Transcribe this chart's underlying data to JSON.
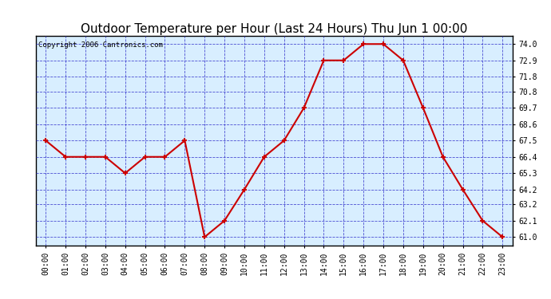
{
  "title": "Outdoor Temperature per Hour (Last 24 Hours) Thu Jun 1 00:00",
  "copyright_text": "Copyright 2006 Cantronics.com",
  "hours": [
    "00:00",
    "01:00",
    "02:00",
    "03:00",
    "04:00",
    "05:00",
    "06:00",
    "07:00",
    "08:00",
    "09:00",
    "10:00",
    "11:00",
    "12:00",
    "13:00",
    "14:00",
    "15:00",
    "16:00",
    "17:00",
    "18:00",
    "19:00",
    "20:00",
    "21:00",
    "22:00",
    "23:00"
  ],
  "temps": [
    67.5,
    66.4,
    66.4,
    66.4,
    65.3,
    66.4,
    66.4,
    67.5,
    61.0,
    62.1,
    64.2,
    66.4,
    67.5,
    69.7,
    72.9,
    72.9,
    74.0,
    74.0,
    72.9,
    69.7,
    66.4,
    64.2,
    62.1,
    61.0
  ],
  "y_ticks": [
    61.0,
    62.1,
    63.2,
    64.2,
    65.3,
    66.4,
    67.5,
    68.6,
    69.7,
    70.8,
    71.8,
    72.9,
    74.0
  ],
  "ylim": [
    60.45,
    74.55
  ],
  "line_color": "#cc0000",
  "marker_color": "#cc0000",
  "bg_color": "#d8eeff",
  "grid_color": "#3333cc",
  "border_color": "#000000",
  "title_fontsize": 11,
  "copyright_fontsize": 6.5,
  "tick_fontsize": 7,
  "ytick_fontsize": 7
}
